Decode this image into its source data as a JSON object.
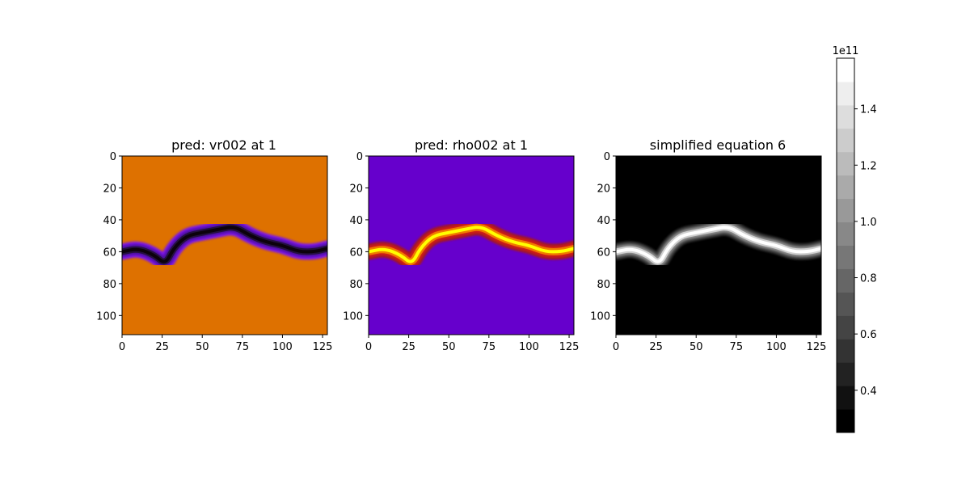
{
  "colors": {
    "vr_background": "#de7100",
    "vr_ridge_edge": "#7c18e6",
    "vr_ridge_core": "#0c020c",
    "rho_background": "#6600cc",
    "rho_ridge_edge": "#d01f12",
    "rho_ridge_core": "#ffff00",
    "eq_background": "#000000",
    "eq_ridge_core": "#ffffff"
  },
  "chart_data": [
    {
      "type": "heatmap",
      "title": "pred: vr002 at 1",
      "xlim": [
        0,
        128
      ],
      "ylim": [
        112,
        0
      ],
      "x_ticks": [
        "0",
        "25",
        "50",
        "75",
        "100",
        "125"
      ],
      "y_ticks": [
        "0",
        "20",
        "40",
        "60",
        "80",
        "100"
      ],
      "colormap": "gnuplot-like (orange background, purple-to-black filaments)",
      "ridge_centerline": [
        [
          0,
          60
        ],
        [
          10,
          58
        ],
        [
          20,
          62
        ],
        [
          27,
          68
        ],
        [
          32,
          58
        ],
        [
          40,
          50
        ],
        [
          50,
          48
        ],
        [
          60,
          46
        ],
        [
          70,
          44
        ],
        [
          80,
          50
        ],
        [
          90,
          54
        ],
        [
          100,
          56
        ],
        [
          110,
          60
        ],
        [
          120,
          60
        ],
        [
          128,
          58
        ]
      ]
    },
    {
      "type": "heatmap",
      "title": "pred: rho002 at 1",
      "xlim": [
        0,
        128
      ],
      "ylim": [
        112,
        0
      ],
      "x_ticks": [
        "0",
        "25",
        "50",
        "75",
        "100",
        "125"
      ],
      "y_ticks": [
        "0",
        "20",
        "40",
        "60",
        "80",
        "100"
      ],
      "colormap": "gnuplot (purple background, red-to-yellow filaments)",
      "ridge_centerline": [
        [
          0,
          60
        ],
        [
          10,
          58
        ],
        [
          20,
          62
        ],
        [
          27,
          68
        ],
        [
          32,
          58
        ],
        [
          40,
          50
        ],
        [
          50,
          48
        ],
        [
          60,
          46
        ],
        [
          70,
          44
        ],
        [
          80,
          50
        ],
        [
          90,
          54
        ],
        [
          100,
          56
        ],
        [
          110,
          60
        ],
        [
          120,
          60
        ],
        [
          128,
          58
        ]
      ]
    },
    {
      "type": "heatmap",
      "title": "simplified equation 6",
      "xlim": [
        0,
        128
      ],
      "ylim": [
        112,
        0
      ],
      "x_ticks": [
        "0",
        "25",
        "50",
        "75",
        "100",
        "125"
      ],
      "y_ticks": [
        "0",
        "20",
        "40",
        "60",
        "80",
        "100"
      ],
      "colormap": "gray",
      "ridge_centerline": [
        [
          0,
          60
        ],
        [
          10,
          58
        ],
        [
          20,
          62
        ],
        [
          27,
          68
        ],
        [
          32,
          58
        ],
        [
          40,
          50
        ],
        [
          50,
          48
        ],
        [
          60,
          46
        ],
        [
          70,
          44
        ],
        [
          80,
          50
        ],
        [
          90,
          54
        ],
        [
          100,
          56
        ],
        [
          110,
          60
        ],
        [
          120,
          60
        ],
        [
          128,
          58
        ]
      ]
    }
  ],
  "colorbar": {
    "exponent_label": "1e11",
    "vmin": 0.25,
    "vmax": 1.58,
    "levels": 16,
    "ticks": [
      {
        "value": 0.4,
        "label": "0.4"
      },
      {
        "value": 0.6,
        "label": "0.6"
      },
      {
        "value": 0.8,
        "label": "0.8"
      },
      {
        "value": 1.0,
        "label": "1.0"
      },
      {
        "value": 1.2,
        "label": "1.2"
      },
      {
        "value": 1.4,
        "label": "1.4"
      }
    ]
  }
}
